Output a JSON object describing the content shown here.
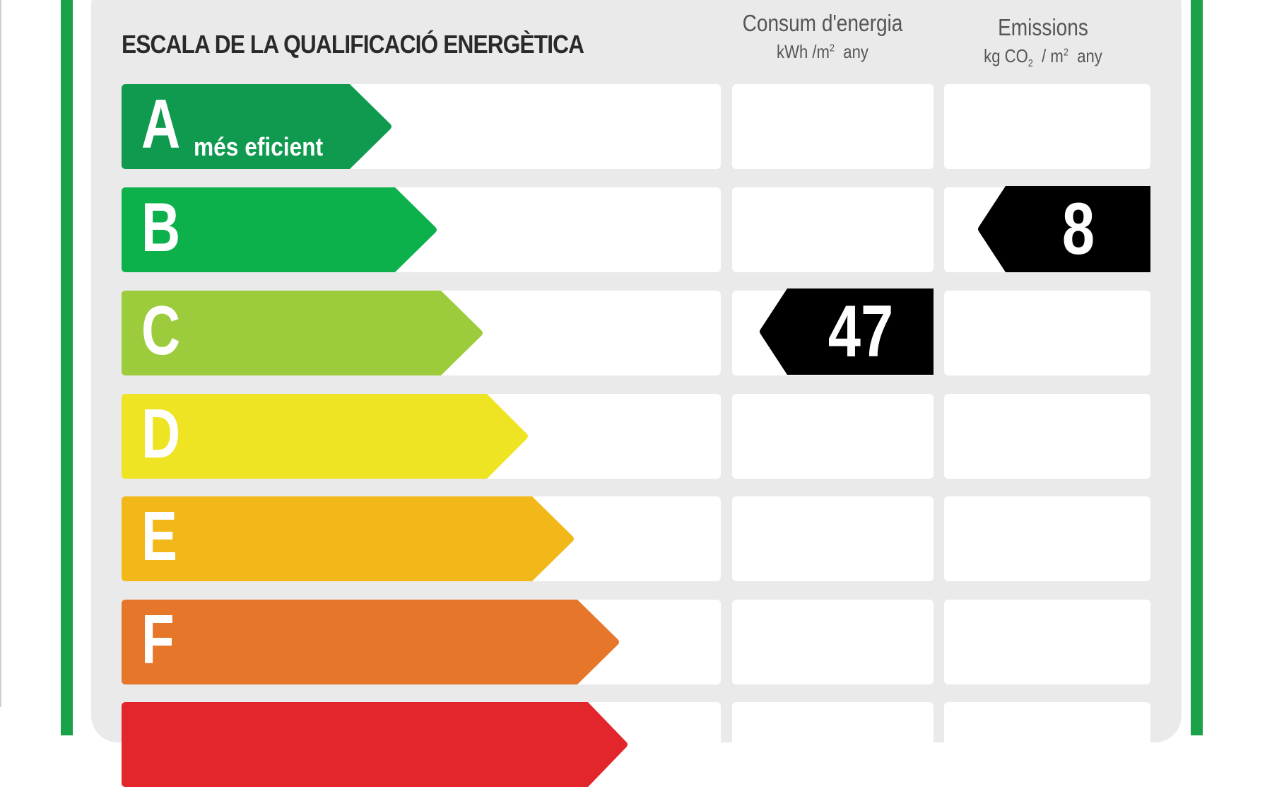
{
  "title": "ESCALA DE LA QUALIFICACIÓ ENERGÈTICA",
  "columns": {
    "energy": {
      "title": "Consum d'energia",
      "unit_kwh": "kWh /m",
      "unit_sup": "2",
      "unit_any": "any"
    },
    "emissions": {
      "title": "Emissions",
      "unit_kg": "kg CO",
      "unit_sub": "2",
      "unit_m": "/ m",
      "unit_sup": "2",
      "unit_any": "any"
    }
  },
  "ratings": [
    {
      "letter": "A",
      "sublabel": "més eficient",
      "color": "#0f9a4f"
    },
    {
      "letter": "B",
      "color": "#0cb14b"
    },
    {
      "letter": "C",
      "color": "#9ccc3c"
    },
    {
      "letter": "D",
      "color": "#eee423"
    },
    {
      "letter": "E",
      "color": "#f2b81a"
    },
    {
      "letter": "F",
      "color": "#e5762a"
    },
    {
      "letter": "",
      "color": "#e2262c"
    }
  ],
  "energy_consumption": {
    "value": "47",
    "rating": "C"
  },
  "emissions": {
    "value": "8",
    "rating": "B"
  },
  "colors": {
    "frame": "#1aa24a",
    "panel": "#ebeaea",
    "marker": "#000000"
  }
}
